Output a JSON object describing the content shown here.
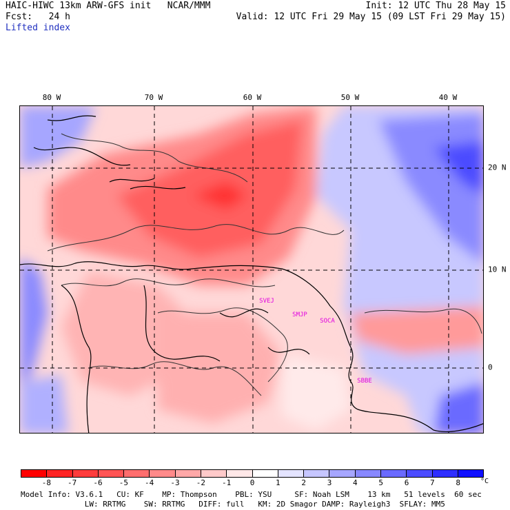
{
  "header": {
    "title_left": "HAIC-HIWC 13km ARW-GFS init   NCAR/MMM",
    "fcst_left": "Fcst:   24 h",
    "field_label": "Lifted index",
    "init_right": "Init: 12 UTC Thu 28 May 15",
    "valid_right": "Valid: 12 UTC Fri 29 May 15 (09 LST Fri 29 May 15)"
  },
  "map": {
    "lon_labels": [
      "80 W",
      "70 W",
      "60 W",
      "50 W",
      "40 W"
    ],
    "lat_labels": [
      "20 N",
      "10 N",
      "0"
    ],
    "stations": [
      "SVEJ",
      "SMJP",
      "SOCA",
      "SBBE"
    ],
    "colors": {
      "ocean_stable": "#2a3aff",
      "unstable": "#ff3030",
      "coast": "#000000"
    }
  },
  "colorbar": {
    "ticks": [
      "-8",
      "-7",
      "-6",
      "-5",
      "-4",
      "-3",
      "-2",
      "-1",
      "0",
      "1",
      "2",
      "3",
      "4",
      "5",
      "6",
      "7",
      "8"
    ],
    "unit": "°C",
    "colors": [
      "#ff0000",
      "#ff2424",
      "#ff3c3c",
      "#ff5454",
      "#ff6e6e",
      "#ff8a8a",
      "#ffa8a8",
      "#ffcaca",
      "#ffe8e8",
      "#ffffff",
      "#e4e4ff",
      "#c6c6ff",
      "#a6a6ff",
      "#8888ff",
      "#6a6aff",
      "#4c4cff",
      "#2e2eff",
      "#1010ff"
    ]
  },
  "footer": {
    "line1": "Model Info: V3.6.1   CU: KF    MP: Thompson    PBL: YSU     SF: Noah LSM    13 km   51 levels  60 sec",
    "line2": "              LW: RRTMG    SW: RRTMG   DIFF: full   KM: 2D Smagor DAMP: Rayleigh3  SFLAY: MM5"
  }
}
